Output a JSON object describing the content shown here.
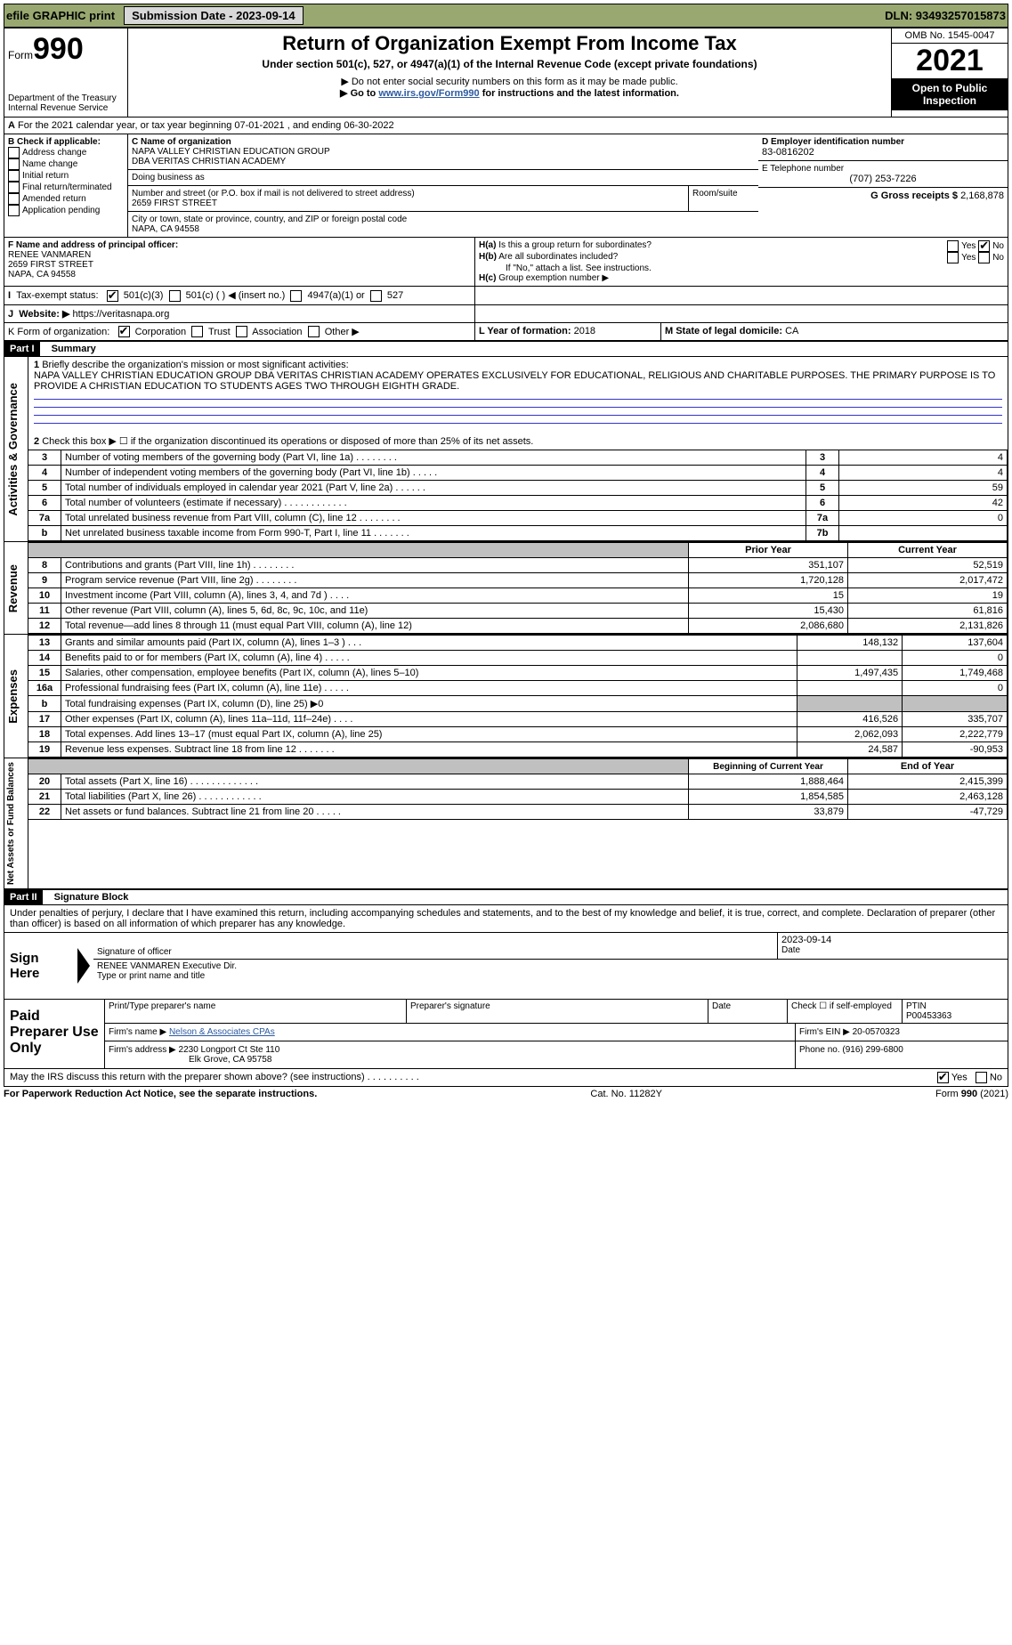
{
  "topbar": {
    "efile": "efile GRAPHIC print",
    "submit_label": "Submission Date - 2023-09-14",
    "dln": "DLN: 93493257015873"
  },
  "header": {
    "form_prefix": "Form",
    "form_no": "990",
    "dept": "Department of the Treasury",
    "irs": "Internal Revenue Service",
    "title": "Return of Organization Exempt From Income Tax",
    "subtitle": "Under section 501(c), 527, or 4947(a)(1) of the Internal Revenue Code (except private foundations)",
    "note_ssn": "▶ Do not enter social security numbers on this form as it may be made public.",
    "note_link_pre": "▶ Go to ",
    "note_link": "www.irs.gov/Form990",
    "note_link_post": " for instructions and the latest information.",
    "omb": "OMB No. 1545-0047",
    "year": "2021",
    "open": "Open to Public Inspection"
  },
  "A": {
    "line": "For the 2021 calendar year, or tax year beginning 07-01-2021    , and ending 06-30-2022"
  },
  "B": {
    "label": "B Check if applicable:",
    "opts": [
      "Address change",
      "Name change",
      "Initial return",
      "Final return/terminated",
      "Amended return",
      "Application pending"
    ]
  },
  "C": {
    "label_name": "C Name of organization",
    "name1": "NAPA VALLEY CHRISTIAN EDUCATION GROUP",
    "name2": "DBA VERITAS CHRISTIAN ACADEMY",
    "dba_label": "Doing business as",
    "addr_label": "Number and street (or P.O. box if mail is not delivered to street address)",
    "room_label": "Room/suite",
    "addr": "2659 FIRST STREET",
    "city_label": "City or town, state or province, country, and ZIP or foreign postal code",
    "city": "NAPA, CA  94558"
  },
  "D": {
    "label": "D Employer identification number",
    "val": "83-0816202"
  },
  "E": {
    "label": "E Telephone number",
    "val": "(707) 253-7226"
  },
  "G": {
    "label": "G Gross receipts $",
    "val": "2,168,878"
  },
  "F": {
    "label": "F  Name and address of principal officer:",
    "name": "RENEE VANMAREN",
    "addr1": "2659 FIRST STREET",
    "addr2": "NAPA, CA  94558"
  },
  "H": {
    "a": "Is this a group return for subordinates?",
    "b": "Are all subordinates included?",
    "note": "If \"No,\" attach a list. See instructions.",
    "c": "Group exemption number ▶"
  },
  "I": {
    "label": "Tax-exempt status:",
    "opts": [
      "501(c)(3)",
      "501(c) (   ) ◀ (insert no.)",
      "4947(a)(1) or",
      "527"
    ]
  },
  "J": {
    "label": "Website: ▶",
    "val": "https://veritasnapa.org"
  },
  "K": {
    "label": "K Form of organization:",
    "opts": [
      "Corporation",
      "Trust",
      "Association",
      "Other ▶"
    ]
  },
  "L": {
    "label": "L Year of formation:",
    "val": "2018"
  },
  "M": {
    "label": "M State of legal domicile:",
    "val": "CA"
  },
  "part1": {
    "label": "Part I",
    "title": "Summary"
  },
  "summary": {
    "q1_label": "Briefly describe the organization's mission or most significant activities:",
    "q1_text": "NAPA VALLEY CHRISTIAN EDUCATION GROUP DBA VERITAS CHRISTIAN ACADEMY OPERATES EXCLUSIVELY FOR EDUCATIONAL, RELIGIOUS AND CHARITABLE PURPOSES. THE PRIMARY PURPOSE IS TO PROVIDE A CHRISTIAN EDUCATION TO STUDENTS AGES TWO THROUGH EIGHTH GRADE.",
    "q2": "Check this box ▶ ☐  if the organization discontinued its operations or disposed of more than 25% of its net assets.",
    "rows": [
      {
        "n": "3",
        "t": "Number of voting members of the governing body (Part VI, line 1a)   .    .    .    .    .    .    .    .",
        "box": "3",
        "v": "4"
      },
      {
        "n": "4",
        "t": "Number of independent voting members of the governing body (Part VI, line 1b)   .    .    .    .    .",
        "box": "4",
        "v": "4"
      },
      {
        "n": "5",
        "t": "Total number of individuals employed in calendar year 2021 (Part V, line 2a)   .    .    .    .    .    .",
        "box": "5",
        "v": "59"
      },
      {
        "n": "6",
        "t": "Total number of volunteers (estimate if necessary)    .    .    .    .    .    .    .    .    .    .    .    .",
        "box": "6",
        "v": "42"
      },
      {
        "n": "7a",
        "t": "Total unrelated business revenue from Part VIII, column (C), line 12   .    .    .    .    .    .    .    .",
        "box": "7a",
        "v": "0"
      },
      {
        "n": "",
        "t": "Net unrelated business taxable income from Form 990-T, Part I, line 11    .    .    .    .    .    .    .",
        "box": "7b",
        "v": ""
      }
    ],
    "col_prior": "Prior Year",
    "col_current": "Current Year",
    "revenue_rows": [
      {
        "n": "8",
        "t": "Contributions and grants (Part VIII, line 1h)    .    .    .    .    .    .    .    .",
        "p": "351,107",
        "c": "52,519"
      },
      {
        "n": "9",
        "t": "Program service revenue (Part VIII, line 2g)    .    .    .    .    .    .    .    .",
        "p": "1,720,128",
        "c": "2,017,472"
      },
      {
        "n": "10",
        "t": "Investment income (Part VIII, column (A), lines 3, 4, and 7d )    .    .    .    .",
        "p": "15",
        "c": "19"
      },
      {
        "n": "11",
        "t": "Other revenue (Part VIII, column (A), lines 5, 6d, 8c, 9c, 10c, and 11e)",
        "p": "15,430",
        "c": "61,816"
      },
      {
        "n": "12",
        "t": "Total revenue—add lines 8 through 11 (must equal Part VIII, column (A), line 12)",
        "p": "2,086,680",
        "c": "2,131,826"
      }
    ],
    "expense_rows": [
      {
        "n": "13",
        "t": "Grants and similar amounts paid (Part IX, column (A), lines 1–3 )   .    .    .",
        "p": "148,132",
        "c": "137,604"
      },
      {
        "n": "14",
        "t": "Benefits paid to or for members (Part IX, column (A), line 4)   .    .    .    .    .",
        "p": "",
        "c": "0"
      },
      {
        "n": "15",
        "t": "Salaries, other compensation, employee benefits (Part IX, column (A), lines 5–10)",
        "p": "1,497,435",
        "c": "1,749,468"
      },
      {
        "n": "16a",
        "t": "Professional fundraising fees (Part IX, column (A), line 11e)   .    .    .    .    .",
        "p": "",
        "c": "0"
      },
      {
        "n": "b",
        "t": "Total fundraising expenses (Part IX, column (D), line 25) ▶0",
        "p": "shaded",
        "c": "shaded"
      },
      {
        "n": "17",
        "t": "Other expenses (Part IX, column (A), lines 11a–11d, 11f–24e)    .    .    .    .",
        "p": "416,526",
        "c": "335,707"
      },
      {
        "n": "18",
        "t": "Total expenses. Add lines 13–17 (must equal Part IX, column (A), line 25)",
        "p": "2,062,093",
        "c": "2,222,779"
      },
      {
        "n": "19",
        "t": "Revenue less expenses. Subtract line 18 from line 12   .    .    .    .    .    .    .",
        "p": "24,587",
        "c": "-90,953"
      }
    ],
    "col_begin": "Beginning of Current Year",
    "col_end": "End of Year",
    "net_rows": [
      {
        "n": "20",
        "t": "Total assets (Part X, line 16)   .    .    .    .    .    .    .    .    .    .    .    .    .",
        "p": "1,888,464",
        "c": "2,415,399"
      },
      {
        "n": "21",
        "t": "Total liabilities (Part X, line 26)   .    .    .    .    .    .    .    .    .    .    .    .",
        "p": "1,854,585",
        "c": "2,463,128"
      },
      {
        "n": "22",
        "t": "Net assets or fund balances. Subtract line 21 from line 20    .    .    .    .    .",
        "p": "33,879",
        "c": "-47,729"
      }
    ]
  },
  "part2": {
    "label": "Part II",
    "title": "Signature Block"
  },
  "sig": {
    "declare": "Under penalties of perjury, I declare that I have examined this return, including accompanying schedules and statements, and to the best of my knowledge and belief, it is true, correct, and complete. Declaration of preparer (other than officer) is based on all information of which preparer has any knowledge.",
    "sign_here": "Sign Here",
    "sig_officer": "Signature of officer",
    "date": "Date",
    "date_val": "2023-09-14",
    "name_title": "RENEE VANMAREN  Executive Dir.",
    "type_name": "Type or print name and title",
    "paid": "Paid Preparer Use Only",
    "prep_name_label": "Print/Type preparer's name",
    "prep_sig_label": "Preparer's signature",
    "prep_date_label": "Date",
    "check_if": "Check ☐ if self-employed",
    "ptin_label": "PTIN",
    "ptin": "P00453363",
    "firm_name_label": "Firm's name    ▶",
    "firm_name": "Nelson & Associates CPAs",
    "firm_ein_label": "Firm's EIN ▶",
    "firm_ein": "20-0570323",
    "firm_addr_label": "Firm's address ▶",
    "firm_addr1": "2230 Longport Ct Ste 110",
    "firm_addr2": "Elk Grove, CA  95758",
    "phone_label": "Phone no.",
    "phone": "(916) 299-6800",
    "discuss": "May the IRS discuss this return with the preparer shown above? (see instructions)    .    .    .    .    .    .    .    .    .    .",
    "yes": "Yes",
    "no": "No"
  },
  "footer": {
    "left": "For Paperwork Reduction Act Notice, see the separate instructions.",
    "mid": "Cat. No. 11282Y",
    "right": "Form 990 (2021)"
  },
  "labels": {
    "yes": "Yes",
    "no": "No",
    "h_a_pre": "H(a)",
    "h_b_pre": "H(b)",
    "h_c_pre": "H(c)",
    "activities": "Activities & Governance",
    "revenue": "Revenue",
    "expenses": "Expenses",
    "netassets": "Net Assets or Fund Balances",
    "b_7b": "b"
  }
}
